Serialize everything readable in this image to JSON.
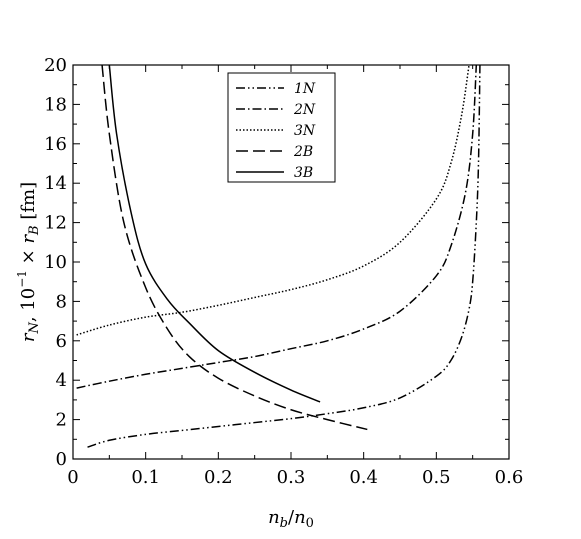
{
  "chart_data": {
    "type": "line",
    "xlabel": "n_b/n_0",
    "ylabel": "r_N, 10^-1 × r_B  [fm]",
    "xlim": [
      0,
      0.6
    ],
    "ylim": [
      0,
      20
    ],
    "x_ticks": [
      "0",
      "0.1",
      "0.2",
      "0.3",
      "0.4",
      "0.5",
      "0.6"
    ],
    "y_ticks": [
      "0",
      "2",
      "4",
      "6",
      "8",
      "10",
      "12",
      "14",
      "16",
      "18",
      "20"
    ],
    "grid": false,
    "legend_position": "top-center",
    "series": [
      {
        "name": "1N",
        "style": "dash-dot-dot",
        "points": [
          [
            0.02,
            0.6
          ],
          [
            0.05,
            0.95
          ],
          [
            0.1,
            1.25
          ],
          [
            0.15,
            1.45
          ],
          [
            0.2,
            1.65
          ],
          [
            0.25,
            1.85
          ],
          [
            0.3,
            2.05
          ],
          [
            0.35,
            2.3
          ],
          [
            0.4,
            2.6
          ],
          [
            0.45,
            3.1
          ],
          [
            0.5,
            4.2
          ],
          [
            0.52,
            5.0
          ],
          [
            0.535,
            6.2
          ],
          [
            0.545,
            7.6
          ],
          [
            0.55,
            9.0
          ],
          [
            0.555,
            12.0
          ],
          [
            0.558,
            15.0
          ],
          [
            0.56,
            20.0
          ]
        ]
      },
      {
        "name": "2N",
        "style": "dash-dot",
        "points": [
          [
            0.005,
            3.6
          ],
          [
            0.05,
            3.95
          ],
          [
            0.1,
            4.3
          ],
          [
            0.15,
            4.6
          ],
          [
            0.2,
            4.9
          ],
          [
            0.25,
            5.2
          ],
          [
            0.3,
            5.6
          ],
          [
            0.35,
            6.0
          ],
          [
            0.4,
            6.6
          ],
          [
            0.45,
            7.5
          ],
          [
            0.5,
            9.3
          ],
          [
            0.52,
            10.8
          ],
          [
            0.54,
            13.5
          ],
          [
            0.55,
            16.5
          ],
          [
            0.555,
            20.0
          ]
        ]
      },
      {
        "name": "3N",
        "style": "dotted",
        "points": [
          [
            0.005,
            6.3
          ],
          [
            0.05,
            6.8
          ],
          [
            0.1,
            7.2
          ],
          [
            0.15,
            7.45
          ],
          [
            0.2,
            7.8
          ],
          [
            0.25,
            8.2
          ],
          [
            0.3,
            8.6
          ],
          [
            0.35,
            9.1
          ],
          [
            0.4,
            9.8
          ],
          [
            0.45,
            11.0
          ],
          [
            0.5,
            13.2
          ],
          [
            0.52,
            15.0
          ],
          [
            0.535,
            17.5
          ],
          [
            0.545,
            20.0
          ]
        ]
      },
      {
        "name": "2B",
        "style": "dashed",
        "points": [
          [
            0.04,
            20.0
          ],
          [
            0.05,
            16.5
          ],
          [
            0.07,
            12.0
          ],
          [
            0.1,
            8.7
          ],
          [
            0.13,
            6.6
          ],
          [
            0.16,
            5.2
          ],
          [
            0.2,
            4.1
          ],
          [
            0.25,
            3.2
          ],
          [
            0.3,
            2.5
          ],
          [
            0.35,
            2.0
          ],
          [
            0.405,
            1.5
          ]
        ]
      },
      {
        "name": "3B",
        "style": "solid",
        "points": [
          [
            0.05,
            20.0
          ],
          [
            0.06,
            16.5
          ],
          [
            0.08,
            12.5
          ],
          [
            0.1,
            9.9
          ],
          [
            0.13,
            8.1
          ],
          [
            0.16,
            6.9
          ],
          [
            0.2,
            5.5
          ],
          [
            0.25,
            4.4
          ],
          [
            0.3,
            3.5
          ],
          [
            0.34,
            2.9
          ]
        ]
      }
    ]
  }
}
